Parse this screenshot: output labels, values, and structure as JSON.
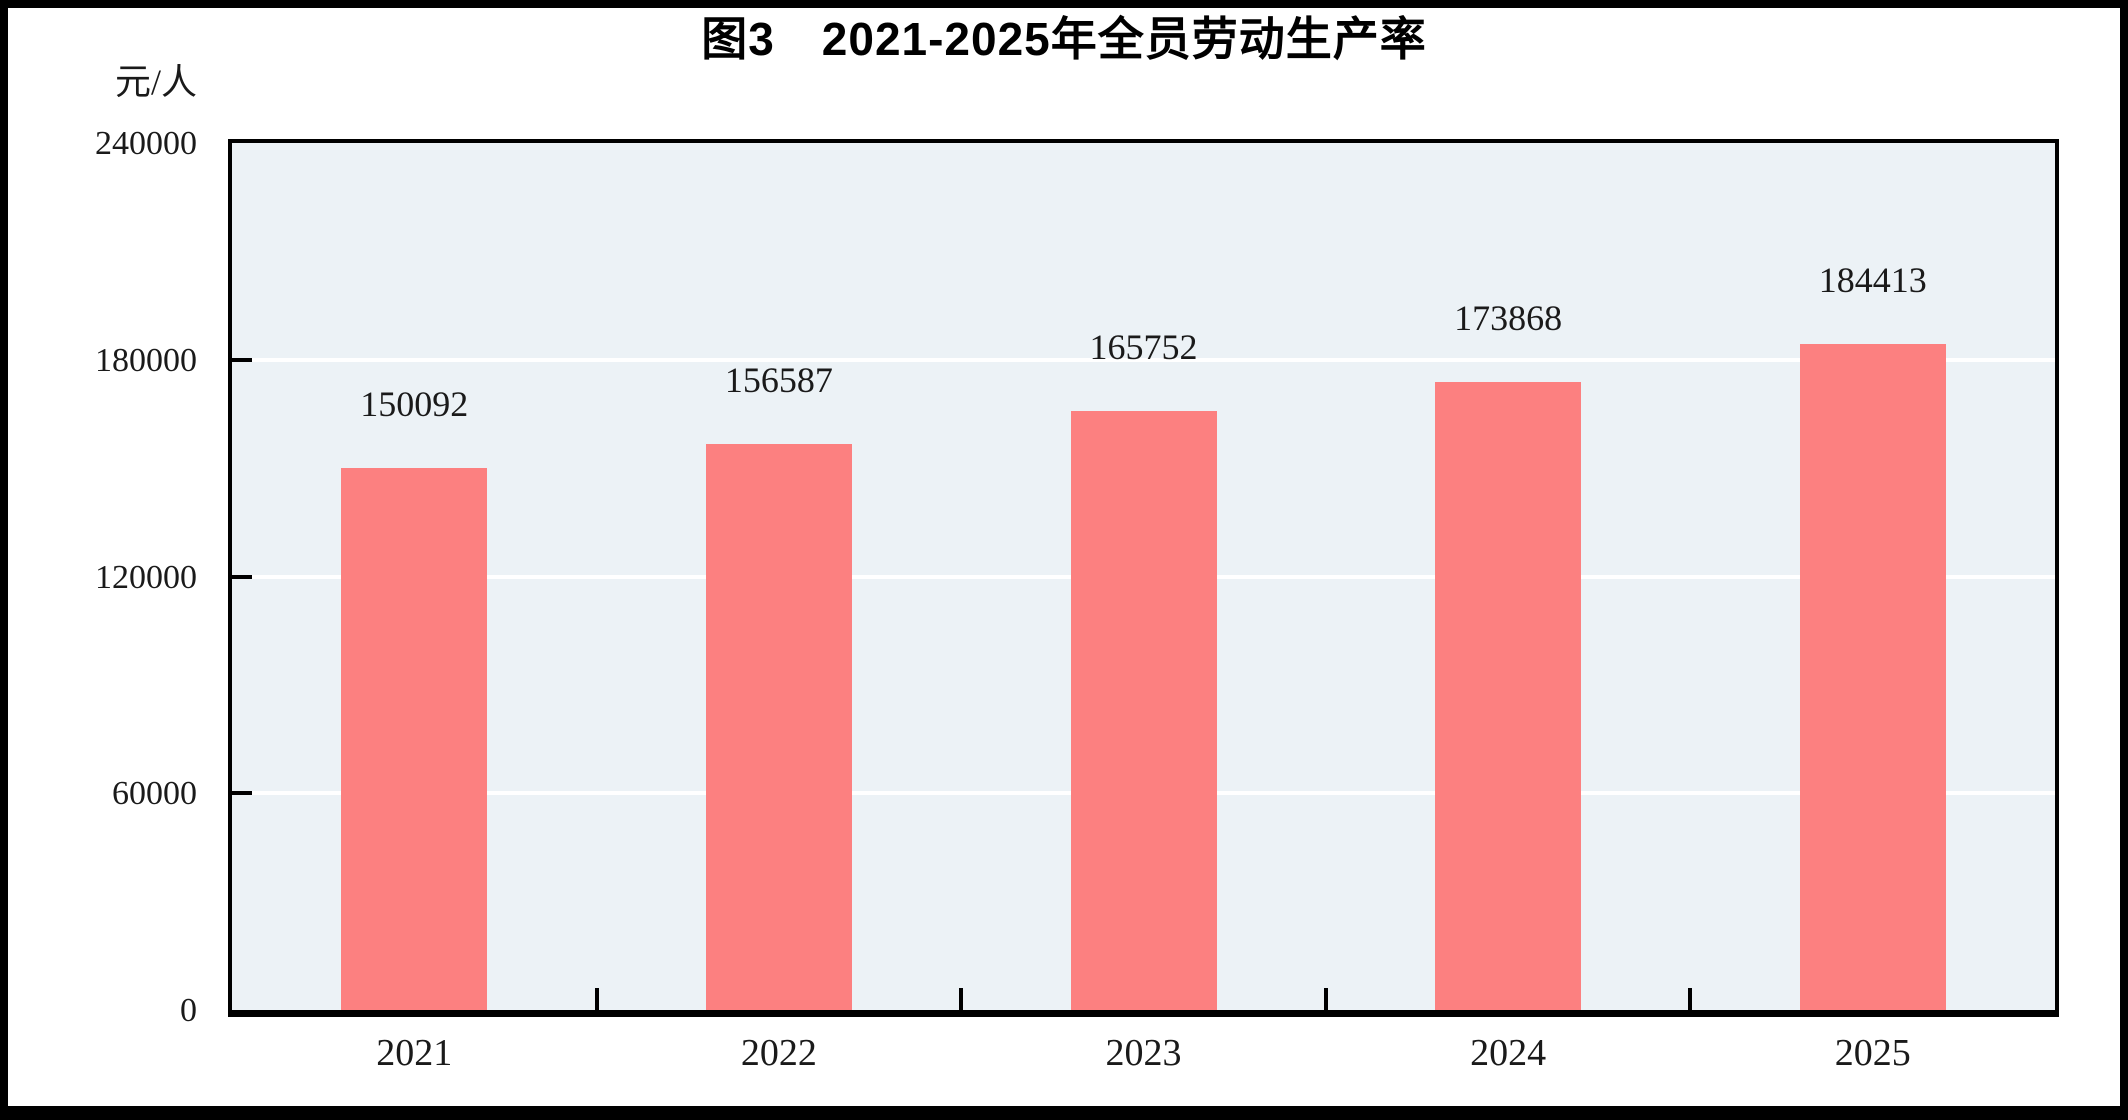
{
  "chart_data": {
    "type": "bar",
    "title": "图3　2021-2025年全员劳动生产率",
    "unit_label": "元/人",
    "categories": [
      "2021",
      "2022",
      "2023",
      "2024",
      "2025"
    ],
    "values": [
      150092,
      156587,
      165752,
      173868,
      184413
    ],
    "data_labels": [
      "150092",
      "156587",
      "165752",
      "173868",
      "184413"
    ],
    "ylim": [
      0,
      240000
    ],
    "yticks": [
      240000,
      180000,
      120000,
      60000,
      0
    ],
    "ytick_labels": [
      "240000",
      "180000",
      "120000",
      "60000",
      "0"
    ],
    "grid": true,
    "gridline_values": [
      60000,
      120000,
      180000
    ],
    "legend_position": "none",
    "colors": {
      "bar": "#FC8080",
      "plot_background": "#ECF2F6",
      "gridline": "#FFFFFF",
      "axis": "#000000",
      "text": "#1A1A1A",
      "frame": "#000000",
      "page": "#FFFFFF"
    }
  }
}
